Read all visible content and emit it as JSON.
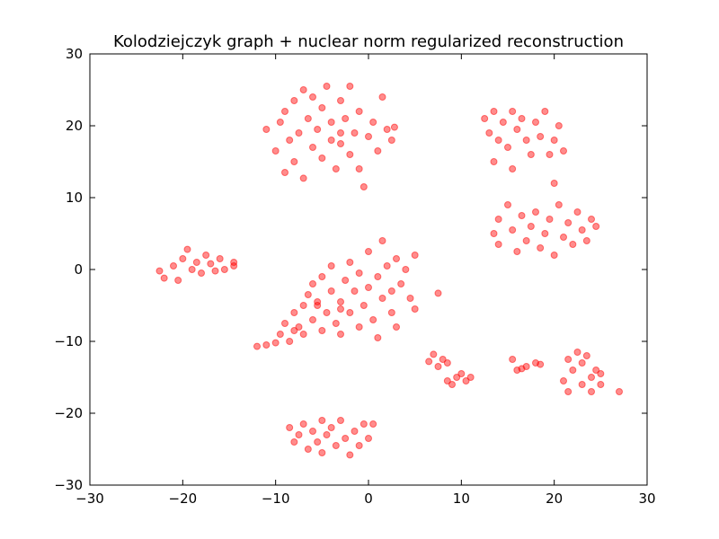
{
  "chart_data": {
    "type": "scatter",
    "title": "Kolodziejczyk graph + nuclear norm regularized reconstruction",
    "color": "#ff0000",
    "xlim": [
      -30,
      30
    ],
    "ylim": [
      -30,
      30
    ],
    "xticks": [
      {
        "value": -30,
        "label": "−30"
      },
      {
        "value": -20,
        "label": "−20"
      },
      {
        "value": -10,
        "label": "−10"
      },
      0,
      10,
      20,
      30
    ],
    "yticks": [
      {
        "value": -30,
        "label": "−30"
      },
      {
        "value": -20,
        "label": "−20"
      },
      {
        "value": -10,
        "label": "−10"
      },
      0,
      10,
      20,
      30
    ],
    "x": [
      -11,
      -10,
      -9.5,
      -9,
      -8.5,
      -8,
      -7.5,
      -7,
      -7,
      -6.5,
      -6,
      -6,
      -5.5,
      -5,
      -5,
      -4.5,
      -4,
      -4,
      -3.5,
      -3,
      -3,
      -2.5,
      -2,
      -2,
      -1.5,
      -1,
      -1,
      -0.5,
      0,
      0.5,
      1,
      1.5,
      2,
      2.5,
      2.8,
      -9,
      -8,
      -3,
      12.5,
      13,
      13.5,
      13.5,
      14,
      14.5,
      15,
      15.5,
      15.5,
      16,
      16.5,
      17,
      17.5,
      18,
      18.5,
      19,
      19.5,
      20,
      20.5,
      21,
      13.5,
      14,
      14,
      15,
      15.5,
      16,
      16.5,
      17,
      17.5,
      18,
      18.5,
      19,
      19.5,
      20,
      20,
      20.5,
      21,
      21.5,
      22,
      22.5,
      23,
      23.5,
      24,
      24.5,
      -22.5,
      -22,
      -21,
      -20.5,
      -20,
      -19.5,
      -19,
      -18.5,
      -18,
      -17.5,
      -17,
      -16.5,
      -16,
      -15.5,
      -14.5,
      -14.5,
      -12,
      -11,
      -10,
      -9.5,
      -9,
      -8.5,
      -8,
      -7.5,
      -7,
      -7,
      -6.5,
      -6,
      -6,
      -5.5,
      -5,
      -5,
      -4.5,
      -4,
      -4,
      -3.5,
      -3,
      -3,
      -2.5,
      -2,
      -2,
      -1.5,
      -1,
      -1,
      -0.5,
      0,
      0,
      0.5,
      1,
      1,
      1.5,
      1.5,
      2,
      2.5,
      2.5,
      3,
      3,
      3.5,
      4,
      4.5,
      5,
      5,
      7.5,
      -8,
      -5.5,
      -3,
      6.5,
      7,
      7.5,
      8,
      8.5,
      8.5,
      9,
      9.5,
      10,
      10.5,
      11,
      15.5,
      16,
      16.5,
      17,
      18,
      18.5,
      21,
      21.5,
      21.5,
      22,
      22.5,
      23,
      23,
      23.5,
      24,
      24,
      24.5,
      25,
      25,
      27,
      -8.5,
      -8,
      -7.5,
      -7,
      -6.5,
      -6,
      -5.5,
      -5,
      -5,
      -4.5,
      -4,
      -3.5,
      -3,
      -2.5,
      -2,
      -1.5,
      -1,
      -0.5,
      0,
      0.5
    ],
    "values": [
      19.5,
      16.5,
      20.5,
      22,
      18,
      23.5,
      19,
      25,
      12.7,
      21,
      17,
      24,
      19.5,
      15.5,
      22.5,
      25.5,
      18,
      20.5,
      14,
      23.5,
      17.5,
      21,
      16,
      25.5,
      19,
      22,
      14,
      11.5,
      18.5,
      20.5,
      16.5,
      24,
      19.5,
      18,
      19.8,
      13.5,
      15,
      19,
      21,
      19,
      15,
      22,
      18,
      20.5,
      17,
      22,
      14,
      19.5,
      21,
      18,
      16,
      20.5,
      18.5,
      22,
      16,
      18,
      20,
      16.5,
      5,
      7,
      3.5,
      9,
      5.5,
      2.5,
      7.5,
      4,
      6,
      8,
      3,
      5,
      7,
      12,
      2,
      9,
      4.5,
      6.5,
      3.5,
      8,
      5.5,
      4,
      7,
      6,
      -0.2,
      -1.2,
      0.5,
      -1.5,
      1.5,
      2.8,
      0,
      1,
      -0.5,
      2,
      0.8,
      -0.2,
      1.5,
      0,
      1,
      0.5,
      -10.7,
      -10.5,
      -10.2,
      -9,
      -7.5,
      -10,
      -6,
      -8,
      -5,
      -9,
      -3.5,
      -7,
      -2,
      -4.5,
      -8.5,
      -1,
      -6,
      -3,
      0.5,
      -7.5,
      -4.5,
      -9,
      -1.5,
      -6,
      1,
      -3,
      -8,
      -0.5,
      -5,
      -2.5,
      2.5,
      -7,
      -1,
      -9.5,
      -4,
      4,
      0.5,
      -6,
      -3,
      1.5,
      -8,
      -2,
      0,
      -4,
      2,
      -5.5,
      -3.3,
      -8.5,
      -5,
      -5.5,
      -12.8,
      -11.8,
      -13.5,
      -12.5,
      -13,
      -15.5,
      -16,
      -15,
      -14.5,
      -15.5,
      -15,
      -12.5,
      -14,
      -13.8,
      -13.5,
      -13,
      -13.2,
      -15.5,
      -12.5,
      -17,
      -14,
      -11.5,
      -13,
      -16,
      -12,
      -15,
      -17,
      -14,
      -16,
      -14.5,
      -17,
      -22,
      -24,
      -23,
      -21.5,
      -25,
      -22.5,
      -24,
      -21,
      -25.5,
      -23,
      -22,
      -24.5,
      -21,
      -23.5,
      -25.8,
      -22.5,
      -24.5,
      -21.5,
      -23.5,
      -21.5
    ]
  }
}
